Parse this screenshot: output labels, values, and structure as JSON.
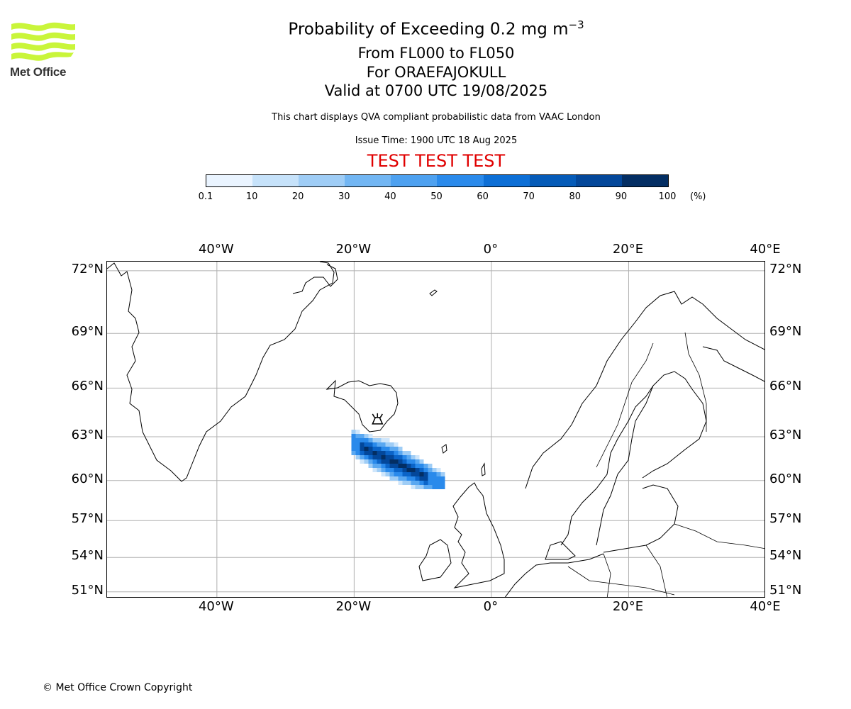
{
  "header": {
    "logo_text": "Met Office",
    "title": "Probability of Exceeding 0.2 mg m",
    "title_exponent": "−3",
    "flight_levels": "From FL000 to FL050",
    "volcano": "For ORAEFAJOKULL",
    "valid": "Valid at 0700 UTC 19/08/2025",
    "subtitle": "This chart displays QVA compliant probabilistic data from VAAC London",
    "issue": "Issue Time: 1900 UTC 18 Aug 2025",
    "test_banner": "TEST TEST TEST"
  },
  "colorbar": {
    "ticks": [
      "0.1",
      "10",
      "20",
      "30",
      "40",
      "50",
      "60",
      "70",
      "80",
      "90",
      "100"
    ],
    "unit": "(%)",
    "colors": [
      "#eaf4ff",
      "#c6e2fa",
      "#9fcdf6",
      "#72b6f3",
      "#4ea1f0",
      "#2a8aeb",
      "#0d6fd6",
      "#055bb8",
      "#03479a",
      "#032e63"
    ]
  },
  "map": {
    "lon_labels": [
      "40°W",
      "20°W",
      "0°",
      "20°E",
      "40°E"
    ],
    "lat_labels": [
      "72°N",
      "69°N",
      "66°N",
      "63°N",
      "60°N",
      "57°N",
      "54°N",
      "51°N"
    ],
    "lon_values": [
      -40,
      -20,
      0,
      20,
      40
    ],
    "lat_values": [
      72,
      69,
      66,
      63,
      60,
      57,
      54,
      51
    ],
    "extent": {
      "lon_min": -56,
      "lon_max": 40,
      "lat_min": 50.4,
      "lat_max": 72.4
    },
    "gridlines": true,
    "volcano_marker": {
      "lon": -16.6,
      "lat": 64.0,
      "icon": "volcano-icon"
    },
    "plume_core": {
      "lon_min": -20,
      "lon_max": -8,
      "lat_min": 60.5,
      "lat_max": 64
    },
    "plume_colors": [
      "#cfe6fb",
      "#9fcdf6",
      "#5aa8f1",
      "#2a8aeb",
      "#0b64c8",
      "#03479a",
      "#032e63"
    ]
  },
  "footer": {
    "copyright": "© Met Office Crown Copyright"
  }
}
